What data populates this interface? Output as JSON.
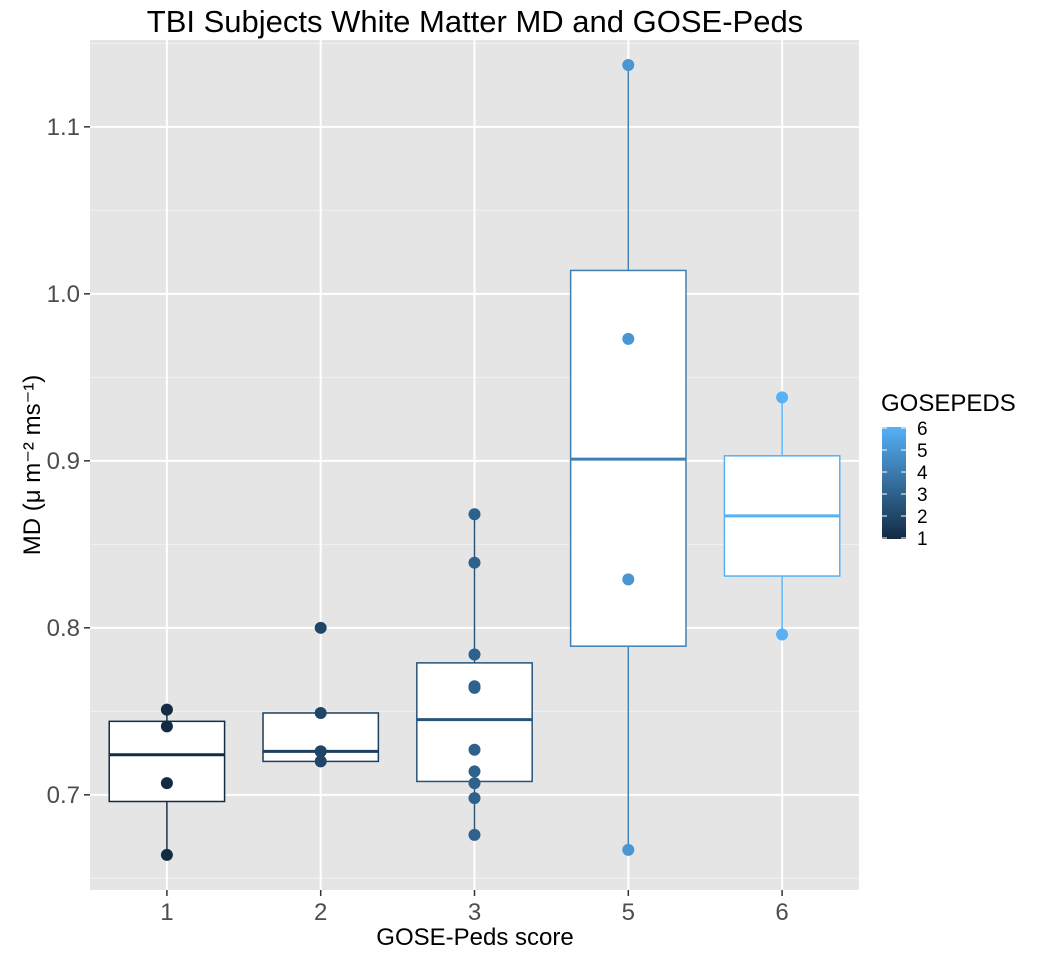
{
  "chart_data": {
    "type": "boxplot",
    "title": "TBI Subjects White Matter MD and GOSE-Peds",
    "xlabel": "GOSE-Peds score",
    "ylabel": "MD (μ m⁻² ms⁻¹)",
    "categories": [
      "1",
      "2",
      "3",
      "5",
      "6"
    ],
    "ylim": [
      0.643,
      1.152
    ],
    "y_ticks": [
      0.7,
      0.8,
      0.9,
      1.0,
      1.1
    ],
    "y_tick_labels": [
      "0.7",
      "0.8",
      "0.9",
      "1.0",
      "1.1"
    ],
    "grid": true,
    "boxes": [
      {
        "category": "1",
        "gosepeds": 1,
        "whisker_low": 0.664,
        "q1": 0.696,
        "median": 0.724,
        "q3": 0.744,
        "whisker_high": 0.751,
        "color": "#132B43"
      },
      {
        "category": "2",
        "gosepeds": 2,
        "whisker_low": 0.72,
        "q1": 0.72,
        "median": 0.726,
        "q3": 0.749,
        "whisker_high": 0.749,
        "color": "#1D3F5E"
      },
      {
        "category": "3",
        "gosepeds": 3,
        "whisker_low": 0.676,
        "q1": 0.708,
        "median": 0.745,
        "q3": 0.779,
        "whisker_high": 0.868,
        "color": "#28547A"
      },
      {
        "category": "5",
        "gosepeds": 5,
        "whisker_low": 0.667,
        "q1": 0.789,
        "median": 0.901,
        "q3": 1.014,
        "whisker_high": 1.137,
        "color": "#3E7FB5"
      },
      {
        "category": "6",
        "gosepeds": 6,
        "whisker_low": 0.796,
        "q1": 0.831,
        "median": 0.867,
        "q3": 0.903,
        "whisker_high": 0.938,
        "color": "#56B1F7"
      }
    ],
    "points": [
      {
        "category": "1",
        "gosepeds": 1,
        "values": [
          0.751,
          0.741,
          0.707,
          0.664
        ]
      },
      {
        "category": "2",
        "gosepeds": 2,
        "values": [
          0.8,
          0.749,
          0.726,
          0.726,
          0.72
        ]
      },
      {
        "category": "3",
        "gosepeds": 3,
        "values": [
          0.868,
          0.839,
          0.784,
          0.765,
          0.764,
          0.727,
          0.714,
          0.707,
          0.698,
          0.676
        ]
      },
      {
        "category": "5",
        "gosepeds": 5,
        "values": [
          1.137,
          0.973,
          0.829,
          0.667
        ]
      },
      {
        "category": "6",
        "gosepeds": 6,
        "values": [
          0.938,
          0.796
        ]
      }
    ],
    "legend": {
      "title": "GOSEPEDS",
      "position": "right",
      "type": "colorbar",
      "labels": [
        "6",
        "5",
        "4",
        "3",
        "2",
        "1"
      ],
      "low_color": "#132B43",
      "high_color": "#56B1F7",
      "range": [
        1,
        6
      ]
    }
  }
}
